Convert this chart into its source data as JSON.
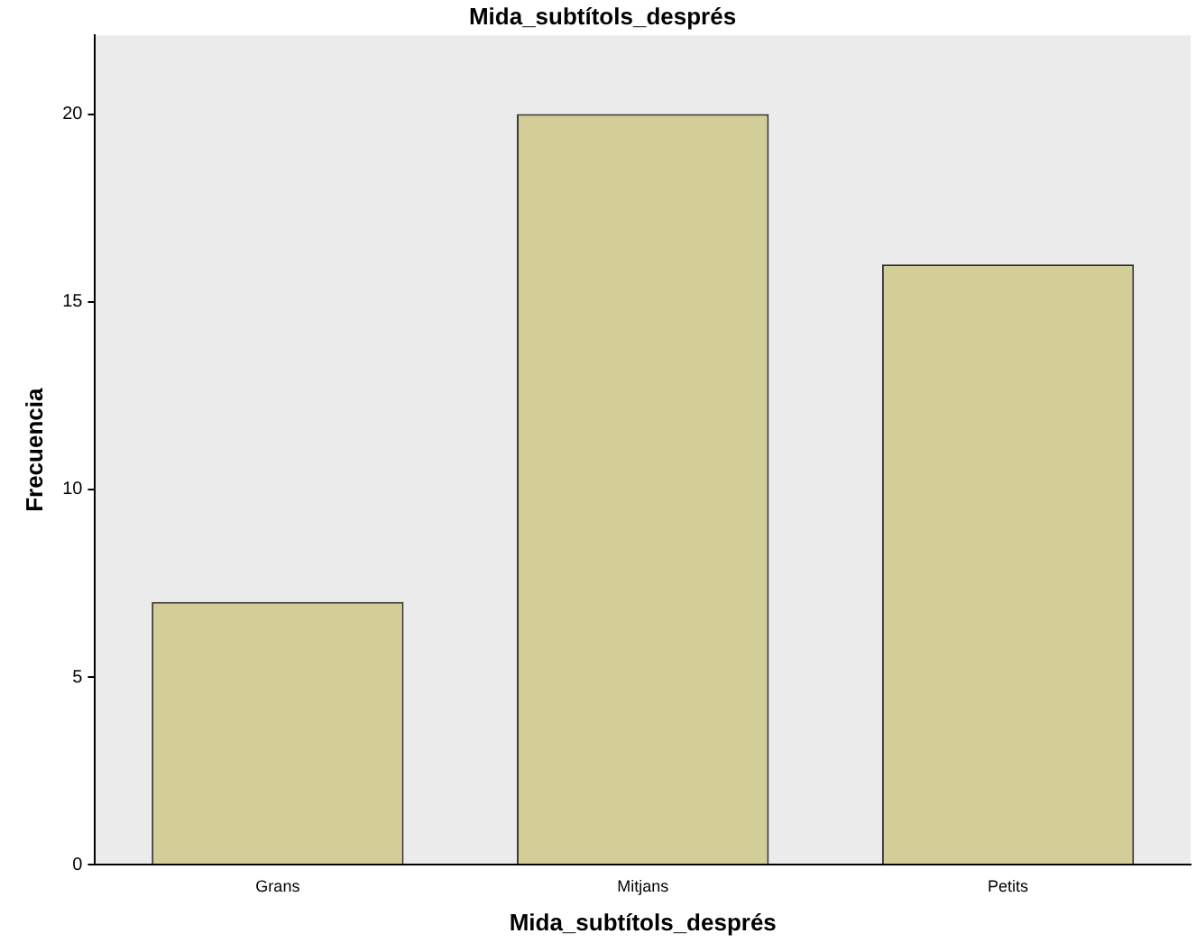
{
  "chart_data": {
    "type": "bar",
    "title": "Mida_subtítols_després",
    "xlabel": "Mida_subtítols_després",
    "ylabel": "Frecuencia",
    "categories": [
      "Grans",
      "Mitjans",
      "Petits"
    ],
    "values": [
      7,
      20,
      16
    ],
    "color": "#d3ce97",
    "ylim": [
      0,
      22.1
    ],
    "yticks": [
      0,
      5,
      10,
      15,
      20
    ],
    "grid": false,
    "legend": false
  }
}
